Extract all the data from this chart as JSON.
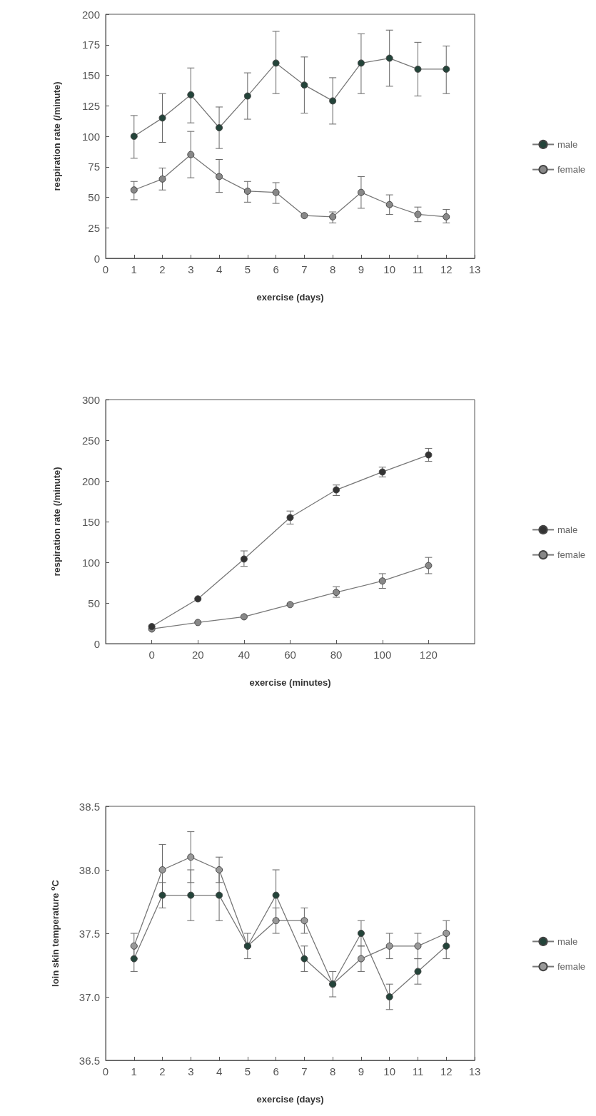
{
  "chart_data": [
    {
      "type": "line",
      "xlabel": "exercise (days)",
      "ylabel": "respiration rate (/minute)",
      "x": [
        1,
        2,
        3,
        4,
        5,
        6,
        7,
        8,
        9,
        10,
        11,
        12
      ],
      "xlim": [
        0,
        13
      ],
      "xticks": [
        0,
        1,
        2,
        3,
        4,
        5,
        6,
        7,
        8,
        9,
        10,
        11,
        12,
        13
      ],
      "ylim": [
        0,
        200
      ],
      "yticks": [
        0,
        25,
        50,
        75,
        100,
        125,
        150,
        175,
        200
      ],
      "grid": false,
      "legend": "right",
      "marker": "circle",
      "line_style": "solid",
      "series": [
        {
          "name": "male",
          "color": "#24443a",
          "values": [
            100,
            115,
            134,
            107,
            133,
            160,
            142,
            129,
            160,
            164,
            155,
            155
          ],
          "errors": [
            [
              82,
              117
            ],
            [
              95,
              135
            ],
            [
              111,
              156
            ],
            [
              90,
              124
            ],
            [
              114,
              152
            ],
            [
              135,
              186
            ],
            [
              119,
              165
            ],
            [
              110,
              148
            ],
            [
              135,
              184
            ],
            [
              141,
              187
            ],
            [
              133,
              177
            ],
            [
              135,
              174
            ]
          ]
        },
        {
          "name": "female",
          "color": "#888888",
          "values": [
            56,
            65,
            85,
            67,
            55,
            54,
            35,
            34,
            54,
            44,
            36,
            34
          ],
          "errors": [
            [
              48,
              63
            ],
            [
              56,
              74
            ],
            [
              66,
              104
            ],
            [
              54,
              81
            ],
            [
              46,
              63
            ],
            [
              45,
              62
            ],
            null,
            [
              29,
              38
            ],
            [
              41,
              67
            ],
            [
              36,
              52
            ],
            [
              30,
              42
            ],
            [
              29,
              40
            ]
          ]
        }
      ]
    },
    {
      "type": "line",
      "xlabel": "exercise (minutes)",
      "ylabel": "respiration rate (/minute)",
      "x": [
        0,
        20,
        40,
        60,
        80,
        100,
        120
      ],
      "xlim": [
        -20,
        140
      ],
      "xticks": [
        0,
        20,
        40,
        60,
        80,
        100,
        120
      ],
      "ylim": [
        0,
        300
      ],
      "yticks": [
        0,
        50,
        100,
        150,
        200,
        250,
        300
      ],
      "grid": false,
      "legend": "right",
      "marker": "circle",
      "line_style": "solid",
      "series": [
        {
          "name": "male",
          "color": "#333333",
          "values": [
            21,
            55,
            104,
            155,
            189,
            211,
            232
          ],
          "errors": [
            null,
            null,
            [
              95,
              114
            ],
            [
              147,
              163
            ],
            [
              182,
              195
            ],
            [
              205,
              217
            ],
            [
              224,
              240
            ]
          ]
        },
        {
          "name": "female",
          "color": "#888888",
          "values": [
            18,
            26,
            33,
            48,
            63,
            77,
            96
          ],
          "errors": [
            null,
            null,
            null,
            null,
            [
              57,
              70
            ],
            [
              68,
              86
            ],
            [
              86,
              106
            ]
          ]
        }
      ]
    },
    {
      "type": "line",
      "xlabel": "exercise (days)",
      "ylabel": "loin skin temperature $^{o}$C",
      "x": [
        1,
        2,
        3,
        4,
        5,
        6,
        7,
        8,
        9,
        10,
        11,
        12
      ],
      "xlim": [
        0,
        13
      ],
      "xticks": [
        0,
        1,
        2,
        3,
        4,
        5,
        6,
        7,
        8,
        9,
        10,
        11,
        12,
        13
      ],
      "ylim": [
        36.5,
        38.5
      ],
      "yticks": [
        36.5,
        {
          "value": 37,
          "label": "37.0"
        },
        37.5,
        {
          "value": 38,
          "label": "38.0"
        },
        38.5
      ],
      "grid": false,
      "legend": "right",
      "marker": "circle",
      "line_style": "solid",
      "series": [
        {
          "name": "male",
          "color": "#24443a",
          "values": [
            37.3,
            37.8,
            37.8,
            37.8,
            37.4,
            37.8,
            37.3,
            37.1,
            37.5,
            37.0,
            37.2,
            37.4
          ],
          "errors": [
            0.1,
            0.1,
            0.2,
            0.2,
            0.1,
            0.2,
            0.1,
            0.1,
            0.1,
            0.1,
            0.1,
            0.1
          ]
        },
        {
          "name": "female",
          "color": "#999999",
          "values": [
            37.4,
            38.0,
            38.1,
            38.0,
            37.4,
            37.6,
            37.6,
            37.1,
            37.3,
            37.4,
            37.4,
            37.5
          ],
          "errors": [
            0.1,
            0.2,
            0.2,
            0.1,
            null,
            0.1,
            0.1,
            null,
            0.1,
            0.1,
            0.1,
            0.1
          ]
        }
      ]
    }
  ]
}
